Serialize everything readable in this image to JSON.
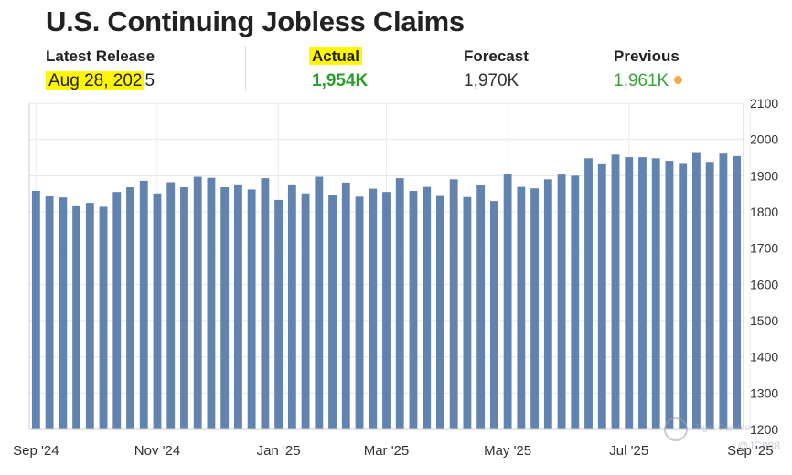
{
  "header": {
    "title": "U.S. Continuing Jobless Claims",
    "latest_release_label": "Latest Release",
    "latest_release_value": "Aug 28, 2025",
    "latest_release_value_highlighted": "Aug 28, 202",
    "latest_release_value_rest": "5",
    "actual_label": "Actual",
    "actual_value": "1,954K",
    "forecast_label": "Forecast",
    "forecast_value": "1,970K",
    "previous_label": "Previous",
    "previous_value": "1,961K"
  },
  "colors": {
    "bar": "#6283ad",
    "highlight": "#fff700",
    "actual_green": "#2a9d2a",
    "previous_green": "#3aa33a",
    "dot_orange": "#f0ad4e"
  },
  "watermark": {
    "text": "Tiger Commu",
    "handle": "@JC888"
  },
  "chart_data": {
    "type": "bar",
    "title": "U.S. Continuing Jobless Claims",
    "xlabel": "",
    "ylabel": "",
    "ylim": [
      1200,
      2100
    ],
    "yticks": [
      1200,
      1300,
      1400,
      1500,
      1600,
      1700,
      1800,
      1900,
      2000,
      2100
    ],
    "x_tick_labels": [
      {
        "label": "Sep '24",
        "index": 0
      },
      {
        "label": "Nov '24",
        "index": 9
      },
      {
        "label": "Jan '25",
        "index": 18
      },
      {
        "label": "Mar '25",
        "index": 26
      },
      {
        "label": "May '25",
        "index": 35
      },
      {
        "label": "Jul '25",
        "index": 44
      },
      {
        "label": "Sep '25",
        "index": 53
      }
    ],
    "grid": true,
    "values": [
      1858,
      1843,
      1840,
      1818,
      1825,
      1814,
      1855,
      1868,
      1886,
      1851,
      1882,
      1868,
      1897,
      1894,
      1868,
      1876,
      1862,
      1893,
      1833,
      1876,
      1851,
      1897,
      1847,
      1881,
      1842,
      1864,
      1855,
      1893,
      1858,
      1869,
      1844,
      1890,
      1841,
      1874,
      1830,
      1905,
      1869,
      1865,
      1890,
      1903,
      1900,
      1948,
      1934,
      1958,
      1951,
      1951,
      1948,
      1941,
      1935,
      1965,
      1938,
      1961,
      1954
    ]
  }
}
